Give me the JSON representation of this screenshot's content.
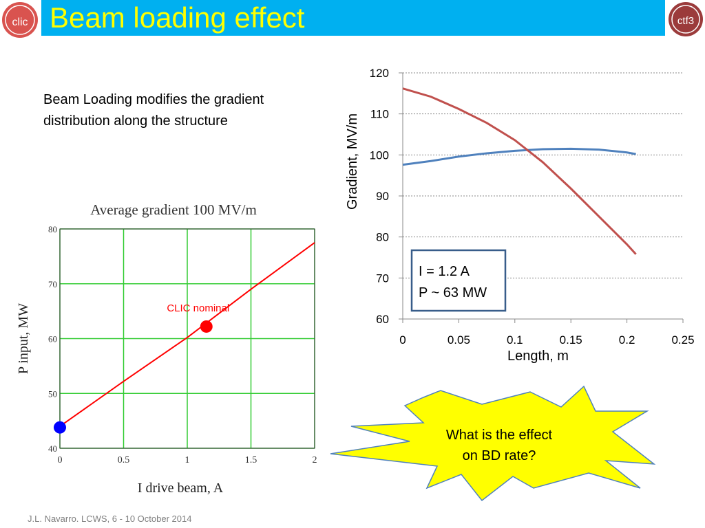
{
  "header": {
    "title": "Beam loading effect",
    "left_logo_text": "clic",
    "right_logo_text": "ctf3"
  },
  "intro": {
    "line1": "Beam Loading modifies the gradient",
    "line2": "distribution along the structure"
  },
  "charts": [
    {
      "type": "line",
      "title": "Average gradient 100 MV/m",
      "xlabel": "I drive beam, A",
      "ylabel": "P input, MW",
      "xlim": [
        0,
        2
      ],
      "ylim": [
        40,
        80
      ],
      "xticks": [
        "0",
        "0.5",
        "1",
        "1.5",
        "2"
      ],
      "yticks": [
        "80",
        "70",
        "60",
        "50",
        "40"
      ],
      "grid": true,
      "series": [
        {
          "color": "#ff0000",
          "x": [
            0,
            0.5,
            1,
            1.5,
            2
          ],
          "y": [
            44,
            52.2,
            60.2,
            69,
            77.5
          ]
        }
      ],
      "markers": [
        {
          "x": 0,
          "y": 43.8,
          "color": "#0000ff"
        },
        {
          "x": 1.15,
          "y": 62.2,
          "color": "#ff0000",
          "label": "CLIC nominal"
        }
      ]
    },
    {
      "type": "line",
      "xlabel": "Length, m",
      "ylabel": "Gradient, MV/m",
      "xlim": [
        0,
        0.25
      ],
      "ylim": [
        60,
        120
      ],
      "xticks": [
        "0",
        "0.05",
        "0.1",
        "0.15",
        "0.2",
        "0.25"
      ],
      "yticks": [
        "120",
        "110",
        "100",
        "90",
        "80",
        "70",
        "60"
      ],
      "grid": true,
      "series": [
        {
          "color": "#4f81bd",
          "x": [
            0,
            0.025,
            0.05,
            0.075,
            0.1,
            0.125,
            0.15,
            0.175,
            0.2,
            0.208
          ],
          "y": [
            97.6,
            98.5,
            99.6,
            100.4,
            101,
            101.4,
            101.5,
            101.3,
            100.6,
            100.2
          ]
        },
        {
          "color": "#c0504d",
          "x": [
            0,
            0.025,
            0.05,
            0.075,
            0.1,
            0.125,
            0.15,
            0.175,
            0.2,
            0.208
          ],
          "y": [
            116.2,
            114.2,
            111.2,
            107.8,
            103.6,
            98.2,
            91.8,
            85,
            78.2,
            75.8
          ]
        }
      ],
      "annotation": {
        "line1": "I = 1.2 A",
        "line2": "P ~ 63 MW"
      }
    }
  ],
  "callout": {
    "line1": "What is the effect",
    "line2": "on BD rate?"
  },
  "footer": {
    "text": "J.L. Navarro. LCWS, 6 - 10 October 2014"
  }
}
